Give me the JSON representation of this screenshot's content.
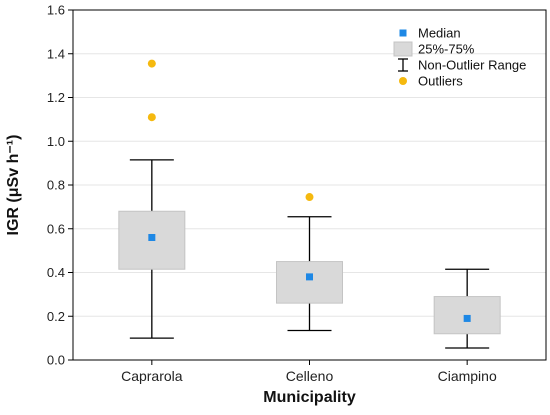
{
  "chart_data": {
    "type": "box",
    "xlabel": "Municipality",
    "ylabel": "IGR (μSv h⁻¹)",
    "ylim": [
      0.0,
      1.6
    ],
    "y_ticks": [
      "0.0",
      "0.2",
      "0.4",
      "0.6",
      "0.8",
      "1.0",
      "1.2",
      "1.4",
      "1.6"
    ],
    "grid": "horizontal",
    "legend_position": "top-right",
    "categories": [
      "Caprarola",
      "Celleno",
      "Ciampino"
    ],
    "boxes": [
      {
        "category": "Caprarola",
        "median": 0.56,
        "q1": 0.415,
        "q3": 0.68,
        "whisker_low": 0.1,
        "whisker_high": 0.915,
        "outliers": [
          1.11,
          1.355
        ]
      },
      {
        "category": "Celleno",
        "median": 0.38,
        "q1": 0.26,
        "q3": 0.45,
        "whisker_low": 0.135,
        "whisker_high": 0.655,
        "outliers": [
          0.745
        ]
      },
      {
        "category": "Ciampino",
        "median": 0.19,
        "q1": 0.12,
        "q3": 0.29,
        "whisker_low": 0.055,
        "whisker_high": 0.415,
        "outliers": []
      }
    ],
    "legend": [
      {
        "key": "median",
        "label": "Median"
      },
      {
        "key": "box",
        "label": "25%-75%"
      },
      {
        "key": "range",
        "label": "Non-Outlier Range"
      },
      {
        "key": "outliers",
        "label": "Outliers"
      }
    ],
    "colors": {
      "median": "#1e88e5",
      "box_fill": "#d9d9d9",
      "box_stroke": "#c4c4c4",
      "whisker": "#000000",
      "outlier": "#f5b90f",
      "grid": "#e6e6e6",
      "axis": "#000000"
    }
  }
}
